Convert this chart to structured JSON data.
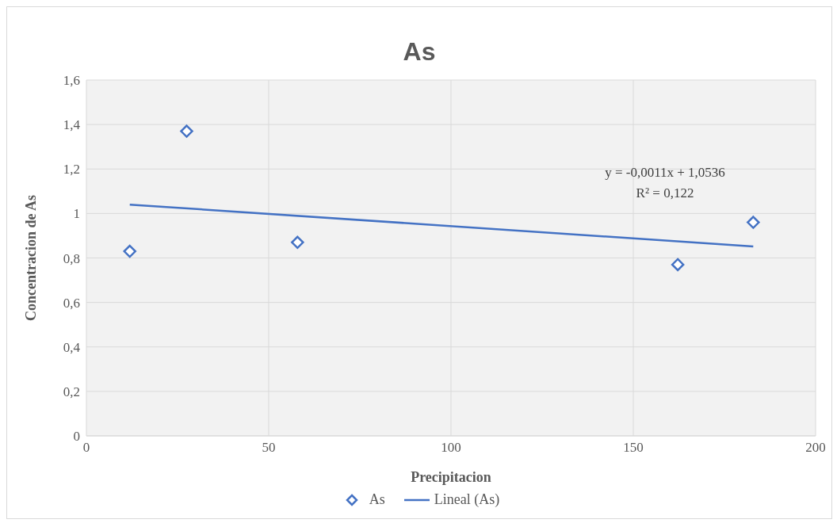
{
  "chart_data": {
    "type": "scatter",
    "title": "As",
    "xlabel": "Precipitacion",
    "ylabel": "Concentracion de As",
    "annotations": [
      "y = -0,0011x + 1,0536",
      "R² = 0,122"
    ],
    "xlim": [
      0,
      200
    ],
    "xticks": [
      0,
      50,
      100,
      150,
      200
    ],
    "ylim": [
      0,
      1.6
    ],
    "yticks": [
      {
        "value": 0,
        "label": "0"
      },
      {
        "value": 0.2,
        "label": "0,2"
      },
      {
        "value": 0.4,
        "label": "0,4"
      },
      {
        "value": 0.6,
        "label": "0,6"
      },
      {
        "value": 0.8,
        "label": "0,8"
      },
      {
        "value": 1,
        "label": "1"
      },
      {
        "value": 1.2,
        "label": "1,2"
      },
      {
        "value": 1.4,
        "label": "1,4"
      },
      {
        "value": 1.6,
        "label": "1,6"
      }
    ],
    "grid": true,
    "legend": "bottom",
    "series": [
      {
        "name": "As",
        "color": "#4472c4",
        "marker": "diamond",
        "x": [
          11.9,
          27.5,
          57.9,
          162.2,
          182.9
        ],
        "values": [
          0.83,
          1.37,
          0.87,
          0.77,
          0.96
        ]
      },
      {
        "name": "Lineal (As)",
        "type": "line",
        "color": "#4472c4",
        "marker": "none",
        "line_style": "solid",
        "x": [
          11.9,
          182.9
        ],
        "values": [
          1.04,
          0.852
        ]
      }
    ]
  }
}
